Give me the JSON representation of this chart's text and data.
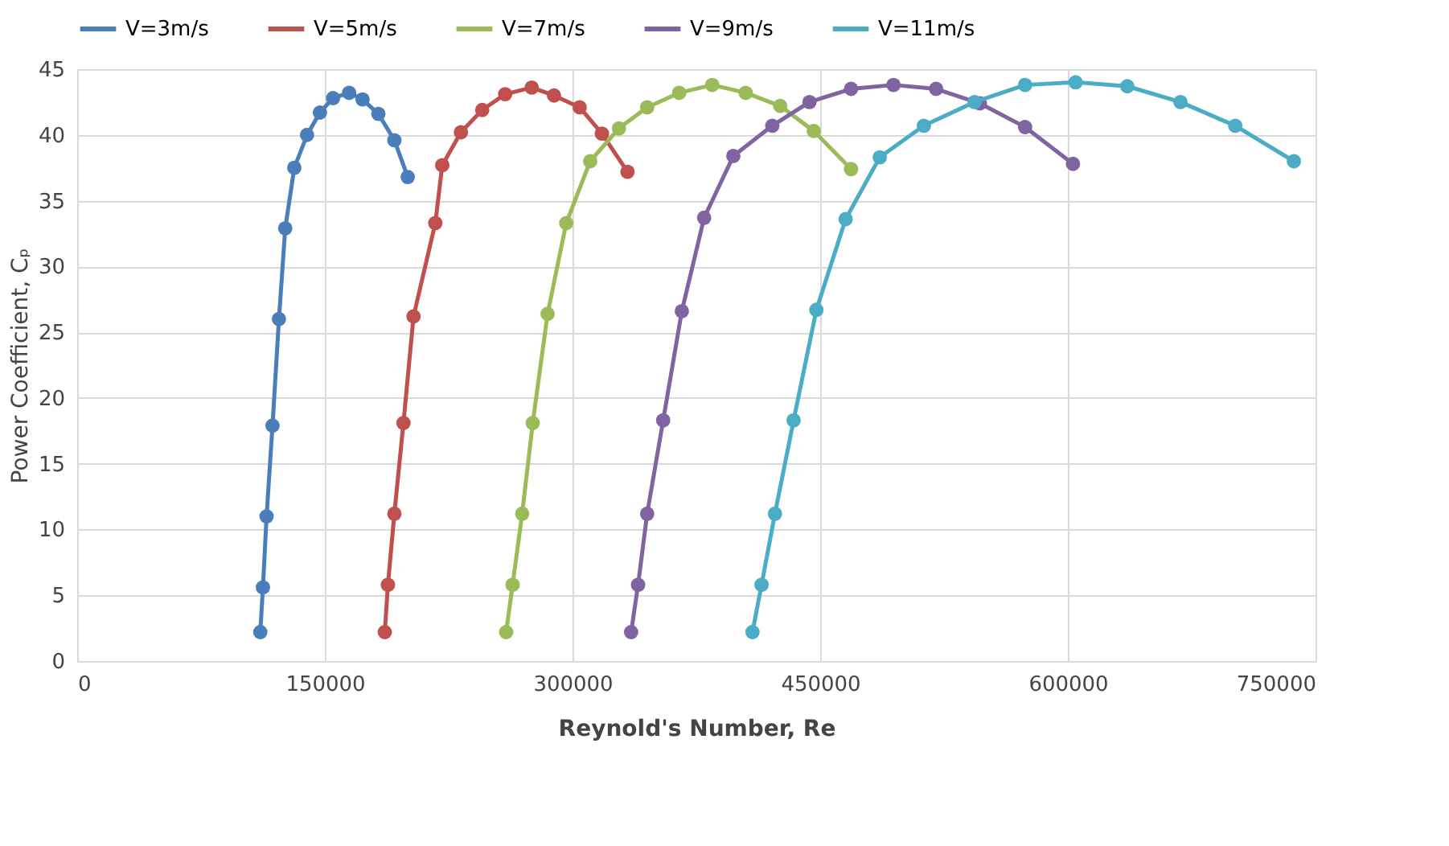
{
  "chart_data": {
    "type": "line",
    "xlabel": "Reynold's Number, Re",
    "ylabel": "Power Coefficient, Cₚ",
    "xlim": [
      0,
      750000
    ],
    "xticks": [
      0,
      150000,
      300000,
      450000,
      600000,
      750000
    ],
    "ylim": [
      0,
      45
    ],
    "yticks": [
      0,
      5,
      10,
      15,
      20,
      25,
      30,
      35,
      40,
      45
    ],
    "grid": true,
    "legend": "top",
    "marker": "circle",
    "line_style": "solid",
    "series": [
      {
        "name": "V=3m/s",
        "color": "#4a7ebb",
        "x": [
          110900,
          112500,
          114700,
          118300,
          122200,
          126000,
          131500,
          139200,
          147000,
          155000,
          164700,
          172800,
          182400,
          192100,
          200200
        ],
        "values": [
          2.2,
          5.6,
          11.0,
          17.9,
          26.0,
          32.9,
          37.5,
          40.0,
          41.7,
          42.8,
          43.2,
          42.7,
          41.6,
          39.6,
          36.8
        ]
      },
      {
        "name": "V=5m/s",
        "color": "#c0504d",
        "x": [
          186300,
          188200,
          192100,
          197600,
          203700,
          216900,
          221100,
          232400,
          245300,
          259200,
          275300,
          288800,
          304300,
          317800,
          333300
        ],
        "values": [
          2.2,
          5.8,
          11.2,
          18.1,
          26.2,
          33.3,
          37.7,
          40.2,
          41.9,
          43.1,
          43.6,
          43.0,
          42.1,
          40.1,
          37.2
        ]
      },
      {
        "name": "V=7m/s",
        "color": "#9bbb59",
        "x": [
          259800,
          263700,
          269500,
          275900,
          284900,
          296200,
          310700,
          328100,
          345200,
          364600,
          384600,
          404900,
          425800,
          446100,
          468700
        ],
        "values": [
          2.2,
          5.8,
          11.2,
          18.1,
          26.4,
          33.3,
          38.0,
          40.5,
          42.1,
          43.2,
          43.8,
          43.2,
          42.2,
          40.3,
          37.4
        ]
      },
      {
        "name": "V=9m/s",
        "color": "#8064a2",
        "x": [
          335500,
          339700,
          345200,
          354900,
          366200,
          379700,
          397400,
          421000,
          443500,
          468700,
          494400,
          520200,
          546700,
          574100,
          603100
        ],
        "values": [
          2.2,
          5.8,
          11.2,
          18.3,
          26.6,
          33.7,
          38.4,
          40.7,
          42.5,
          43.5,
          43.8,
          43.5,
          42.4,
          40.6,
          37.8
        ]
      },
      {
        "name": "V=11m/s",
        "color": "#4bacc6",
        "x": [
          409000,
          414500,
          422600,
          433900,
          447700,
          465400,
          486100,
          512800,
          543500,
          574100,
          604700,
          636000,
          668200,
          701400,
          736900
        ],
        "values": [
          2.2,
          5.8,
          11.2,
          18.3,
          26.7,
          33.6,
          38.3,
          40.7,
          42.5,
          43.8,
          44.0,
          43.7,
          42.5,
          40.7,
          38.0
        ]
      }
    ]
  }
}
